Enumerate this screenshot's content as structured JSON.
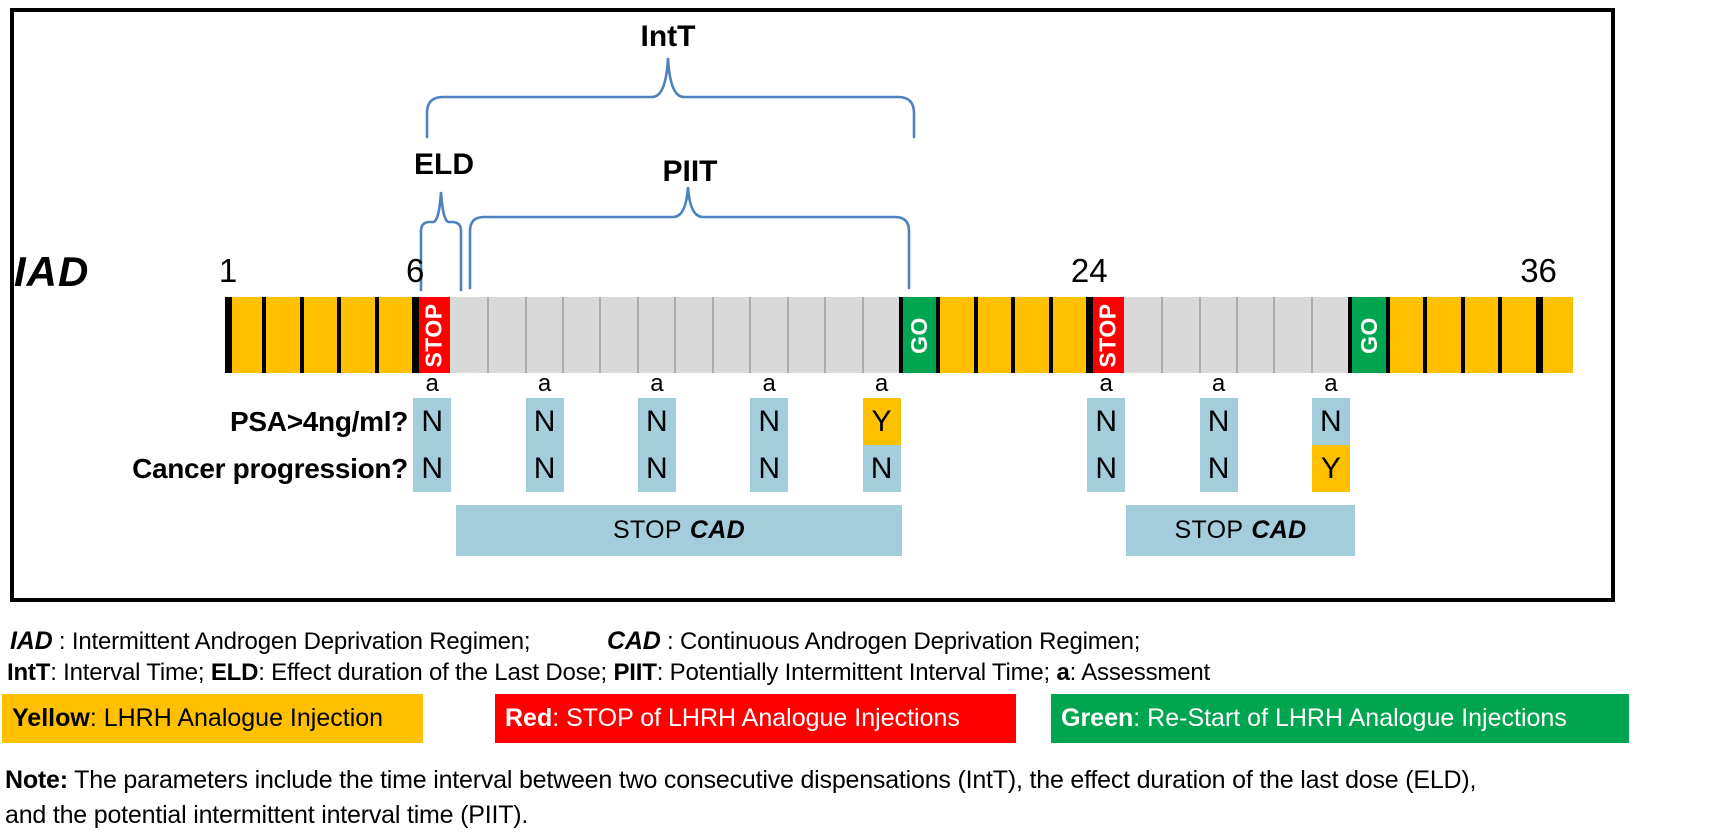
{
  "colors": {
    "yellow": "#FFC000",
    "red": "#FF0000",
    "green": "#00A550",
    "gray": "#D9D9D9",
    "gray_line": "#ACACAC",
    "black": "#000000",
    "cell_no": "#A3CDDB",
    "cell_yes": "#FFC000",
    "brace": "#4F81BD",
    "white": "#FFFFFF"
  },
  "diagram": {
    "title": "IAD",
    "brace_labels": {
      "intt": "IntT",
      "eld": "ELD",
      "piit": "PIIT"
    },
    "bar": {
      "month_ticks": [
        {
          "label": "1",
          "month": 1
        },
        {
          "label": "6",
          "month": 6
        },
        {
          "label": "24",
          "month": 24
        },
        {
          "label": "36",
          "month": 36
        }
      ],
      "segments": [
        {
          "color": "yellow",
          "count": 5
        },
        {
          "color": "red",
          "count": 1,
          "label": "STOP"
        },
        {
          "color": "gray",
          "count": 12
        },
        {
          "color": "green",
          "count": 1,
          "label": "GO"
        },
        {
          "color": "yellow",
          "count": 4
        },
        {
          "color": "red",
          "count": 1,
          "label": "STOP"
        },
        {
          "color": "gray",
          "count": 6
        },
        {
          "color": "green",
          "count": 1,
          "label": "GO"
        },
        {
          "color": "yellow",
          "count": 5
        }
      ]
    },
    "assessments": {
      "marker": "a",
      "months": [
        6,
        9,
        12,
        15,
        18,
        24,
        27,
        30
      ],
      "rows": [
        {
          "label": "PSA>4ng/ml?",
          "values": [
            "N",
            "N",
            "N",
            "N",
            "Y",
            "N",
            "N",
            "N"
          ]
        },
        {
          "label": "Cancer progression?",
          "values": [
            "N",
            "N",
            "N",
            "N",
            "N",
            "N",
            "N",
            "Y"
          ]
        }
      ]
    },
    "stop_cad": {
      "stop": "STOP",
      "cad": "CAD"
    }
  },
  "legend": {
    "line1": {
      "iad": "IAD",
      "iad_def": " : Intermittent Androgen Deprivation Regimen;",
      "cad": "CAD",
      "cad_def": " : Continuous Androgen Deprivation Regimen;"
    },
    "line2": {
      "intt": "IntT",
      "intt_def": ": Interval Time; ",
      "eld": "ELD",
      "eld_def": ": Effect duration of the Last Dose; ",
      "piit": "PIIT",
      "piit_def": ": Potentially Intermittent Interval Time; ",
      "a": "a",
      "a_def": ": Assessment"
    },
    "color_keys": [
      {
        "term": "Yellow",
        "def": ": LHRH Analogue Injection",
        "bg": "#FFC000",
        "fg": "#000000"
      },
      {
        "term": "Red",
        "def": ": STOP of LHRH Analogue Injections",
        "bg": "#FF0000",
        "fg": "#FFFFFF"
      },
      {
        "term": "Green",
        "def": ": Re-Start of LHRH Analogue Injections",
        "bg": "#00A550",
        "fg": "#FFFFFF"
      }
    ]
  },
  "note": {
    "label": "Note:",
    "line1": " The parameters include the time interval between two consecutive dispensations (IntT), the effect duration of the last dose (ELD),",
    "line2": "and the potential intermittent interval time (PIIT)."
  }
}
